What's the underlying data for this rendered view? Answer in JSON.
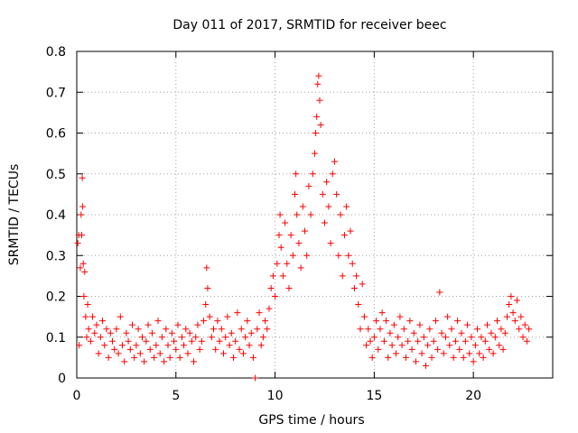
{
  "chart_data": {
    "type": "scatter",
    "title": "Day 011 of 2017, SRMTID for receiver beec",
    "xlabel": "GPS time / hours",
    "ylabel": "SRMTID / TECUs",
    "xlim": [
      0,
      24
    ],
    "ylim": [
      0,
      0.8
    ],
    "xticks": [
      0,
      5,
      10,
      15,
      20
    ],
    "xtick_labels": [
      "0",
      "5",
      "10",
      "15",
      "20"
    ],
    "yticks": [
      0,
      0.1,
      0.2,
      0.3,
      0.4,
      0.5,
      0.6,
      0.7,
      0.8
    ],
    "ytick_labels": [
      "0",
      "0.1",
      "0.2",
      "0.3",
      "0.4",
      "0.5",
      "0.6",
      "0.7",
      "0.8"
    ],
    "grid": true,
    "marker": "+",
    "color": "#ff0000",
    "series": [
      {
        "name": "SRMTID",
        "points": [
          [
            0.05,
            0.33
          ],
          [
            0.1,
            0.35
          ],
          [
            0.12,
            0.08
          ],
          [
            0.18,
            0.27
          ],
          [
            0.22,
            0.4
          ],
          [
            0.25,
            0.35
          ],
          [
            0.28,
            0.49
          ],
          [
            0.3,
            0.42
          ],
          [
            0.33,
            0.28
          ],
          [
            0.36,
            0.2
          ],
          [
            0.4,
            0.26
          ],
          [
            0.45,
            0.15
          ],
          [
            0.5,
            0.1
          ],
          [
            0.55,
            0.18
          ],
          [
            0.6,
            0.12
          ],
          [
            0.7,
            0.09
          ],
          [
            0.8,
            0.15
          ],
          [
            0.9,
            0.11
          ],
          [
            1.0,
            0.13
          ],
          [
            1.1,
            0.06
          ],
          [
            1.2,
            0.1
          ],
          [
            1.3,
            0.14
          ],
          [
            1.4,
            0.08
          ],
          [
            1.5,
            0.12
          ],
          [
            1.6,
            0.05
          ],
          [
            1.7,
            0.11
          ],
          [
            1.8,
            0.09
          ],
          [
            1.9,
            0.07
          ],
          [
            2.0,
            0.12
          ],
          [
            2.1,
            0.06
          ],
          [
            2.2,
            0.15
          ],
          [
            2.3,
            0.08
          ],
          [
            2.4,
            0.04
          ],
          [
            2.5,
            0.11
          ],
          [
            2.6,
            0.09
          ],
          [
            2.7,
            0.07
          ],
          [
            2.8,
            0.13
          ],
          [
            2.9,
            0.05
          ],
          [
            3.0,
            0.08
          ],
          [
            3.1,
            0.12
          ],
          [
            3.2,
            0.06
          ],
          [
            3.3,
            0.1
          ],
          [
            3.4,
            0.04
          ],
          [
            3.5,
            0.09
          ],
          [
            3.6,
            0.13
          ],
          [
            3.7,
            0.07
          ],
          [
            3.8,
            0.11
          ],
          [
            3.9,
            0.05
          ],
          [
            4.0,
            0.08
          ],
          [
            4.1,
            0.14
          ],
          [
            4.2,
            0.06
          ],
          [
            4.3,
            0.1
          ],
          [
            4.4,
            0.04
          ],
          [
            4.5,
            0.12
          ],
          [
            4.6,
            0.08
          ],
          [
            4.7,
            0.05
          ],
          [
            4.8,
            0.11
          ],
          [
            4.9,
            0.09
          ],
          [
            5.0,
            0.07
          ],
          [
            5.1,
            0.13
          ],
          [
            5.2,
            0.05
          ],
          [
            5.3,
            0.1
          ],
          [
            5.4,
            0.08
          ],
          [
            5.5,
            0.12
          ],
          [
            5.6,
            0.06
          ],
          [
            5.7,
            0.11
          ],
          [
            5.8,
            0.09
          ],
          [
            5.9,
            0.04
          ],
          [
            6.0,
            0.1
          ],
          [
            6.1,
            0.13
          ],
          [
            6.2,
            0.07
          ],
          [
            6.3,
            0.09
          ],
          [
            6.4,
            0.14
          ],
          [
            6.5,
            0.18
          ],
          [
            6.55,
            0.27
          ],
          [
            6.6,
            0.22
          ],
          [
            6.7,
            0.15
          ],
          [
            6.8,
            0.1
          ],
          [
            6.9,
            0.12
          ],
          [
            7.0,
            0.07
          ],
          [
            7.1,
            0.14
          ],
          [
            7.2,
            0.09
          ],
          [
            7.3,
            0.12
          ],
          [
            7.4,
            0.06
          ],
          [
            7.5,
            0.1
          ],
          [
            7.6,
            0.15
          ],
          [
            7.7,
            0.08
          ],
          [
            7.8,
            0.11
          ],
          [
            7.9,
            0.05
          ],
          [
            8.0,
            0.09
          ],
          [
            8.1,
            0.16
          ],
          [
            8.2,
            0.07
          ],
          [
            8.3,
            0.12
          ],
          [
            8.4,
            0.06
          ],
          [
            8.5,
            0.1
          ],
          [
            8.6,
            0.14
          ],
          [
            8.7,
            0.08
          ],
          [
            8.8,
            0.11
          ],
          [
            8.9,
            0.05
          ],
          [
            9.0,
            0.0
          ],
          [
            9.1,
            0.12
          ],
          [
            9.2,
            0.16
          ],
          [
            9.3,
            0.08
          ],
          [
            9.4,
            0.1
          ],
          [
            9.5,
            0.14
          ],
          [
            9.6,
            0.12
          ],
          [
            9.7,
            0.17
          ],
          [
            9.8,
            0.22
          ],
          [
            9.9,
            0.25
          ],
          [
            10.0,
            0.2
          ],
          [
            10.1,
            0.28
          ],
          [
            10.2,
            0.35
          ],
          [
            10.25,
            0.4
          ],
          [
            10.3,
            0.32
          ],
          [
            10.4,
            0.25
          ],
          [
            10.5,
            0.38
          ],
          [
            10.6,
            0.28
          ],
          [
            10.7,
            0.22
          ],
          [
            10.8,
            0.35
          ],
          [
            10.9,
            0.3
          ],
          [
            11.0,
            0.45
          ],
          [
            11.05,
            0.5
          ],
          [
            11.1,
            0.4
          ],
          [
            11.2,
            0.33
          ],
          [
            11.3,
            0.27
          ],
          [
            11.4,
            0.42
          ],
          [
            11.5,
            0.36
          ],
          [
            11.6,
            0.3
          ],
          [
            11.7,
            0.47
          ],
          [
            11.8,
            0.4
          ],
          [
            11.9,
            0.5
          ],
          [
            12.0,
            0.55
          ],
          [
            12.05,
            0.6
          ],
          [
            12.1,
            0.64
          ],
          [
            12.15,
            0.72
          ],
          [
            12.2,
            0.74
          ],
          [
            12.25,
            0.68
          ],
          [
            12.3,
            0.62
          ],
          [
            12.4,
            0.45
          ],
          [
            12.5,
            0.38
          ],
          [
            12.6,
            0.48
          ],
          [
            12.7,
            0.42
          ],
          [
            12.8,
            0.33
          ],
          [
            12.9,
            0.5
          ],
          [
            13.0,
            0.53
          ],
          [
            13.1,
            0.45
          ],
          [
            13.2,
            0.3
          ],
          [
            13.3,
            0.4
          ],
          [
            13.4,
            0.25
          ],
          [
            13.5,
            0.35
          ],
          [
            13.6,
            0.42
          ],
          [
            13.7,
            0.3
          ],
          [
            13.8,
            0.36
          ],
          [
            13.9,
            0.28
          ],
          [
            14.0,
            0.22
          ],
          [
            14.1,
            0.25
          ],
          [
            14.2,
            0.18
          ],
          [
            14.3,
            0.12
          ],
          [
            14.4,
            0.23
          ],
          [
            14.5,
            0.15
          ],
          [
            14.6,
            0.08
          ],
          [
            14.7,
            0.12
          ],
          [
            14.8,
            0.09
          ],
          [
            14.9,
            0.05
          ],
          [
            15.0,
            0.1
          ],
          [
            15.1,
            0.14
          ],
          [
            15.2,
            0.07
          ],
          [
            15.3,
            0.12
          ],
          [
            15.4,
            0.16
          ],
          [
            15.5,
            0.09
          ],
          [
            15.6,
            0.14
          ],
          [
            15.7,
            0.05
          ],
          [
            15.8,
            0.11
          ],
          [
            15.9,
            0.08
          ],
          [
            16.0,
            0.13
          ],
          [
            16.1,
            0.06
          ],
          [
            16.2,
            0.1
          ],
          [
            16.3,
            0.15
          ],
          [
            16.4,
            0.08
          ],
          [
            16.5,
            0.12
          ],
          [
            16.6,
            0.05
          ],
          [
            16.7,
            0.09
          ],
          [
            16.8,
            0.14
          ],
          [
            16.9,
            0.07
          ],
          [
            17.0,
            0.11
          ],
          [
            17.1,
            0.04
          ],
          [
            17.2,
            0.09
          ],
          [
            17.3,
            0.13
          ],
          [
            17.4,
            0.06
          ],
          [
            17.5,
            0.1
          ],
          [
            17.6,
            0.03
          ],
          [
            17.7,
            0.08
          ],
          [
            17.8,
            0.12
          ],
          [
            17.9,
            0.05
          ],
          [
            18.0,
            0.09
          ],
          [
            18.1,
            0.14
          ],
          [
            18.2,
            0.07
          ],
          [
            18.3,
            0.21
          ],
          [
            18.4,
            0.11
          ],
          [
            18.5,
            0.06
          ],
          [
            18.6,
            0.1
          ],
          [
            18.7,
            0.15
          ],
          [
            18.8,
            0.08
          ],
          [
            18.9,
            0.12
          ],
          [
            19.0,
            0.05
          ],
          [
            19.1,
            0.09
          ],
          [
            19.2,
            0.14
          ],
          [
            19.3,
            0.07
          ],
          [
            19.4,
            0.11
          ],
          [
            19.5,
            0.05
          ],
          [
            19.6,
            0.09
          ],
          [
            19.7,
            0.13
          ],
          [
            19.8,
            0.06
          ],
          [
            19.9,
            0.1
          ],
          [
            20.0,
            0.04
          ],
          [
            20.1,
            0.08
          ],
          [
            20.2,
            0.12
          ],
          [
            20.3,
            0.06
          ],
          [
            20.4,
            0.1
          ],
          [
            20.5,
            0.05
          ],
          [
            20.6,
            0.09
          ],
          [
            20.7,
            0.13
          ],
          [
            20.8,
            0.07
          ],
          [
            20.9,
            0.11
          ],
          [
            21.0,
            0.06
          ],
          [
            21.1,
            0.1
          ],
          [
            21.2,
            0.14
          ],
          [
            21.3,
            0.08
          ],
          [
            21.4,
            0.12
          ],
          [
            21.5,
            0.07
          ],
          [
            21.6,
            0.11
          ],
          [
            21.7,
            0.15
          ],
          [
            21.8,
            0.18
          ],
          [
            21.9,
            0.2
          ],
          [
            22.0,
            0.16
          ],
          [
            22.1,
            0.14
          ],
          [
            22.2,
            0.19
          ],
          [
            22.3,
            0.12
          ],
          [
            22.4,
            0.15
          ],
          [
            22.5,
            0.1
          ],
          [
            22.6,
            0.13
          ],
          [
            22.7,
            0.09
          ],
          [
            22.8,
            0.12
          ]
        ]
      }
    ]
  }
}
